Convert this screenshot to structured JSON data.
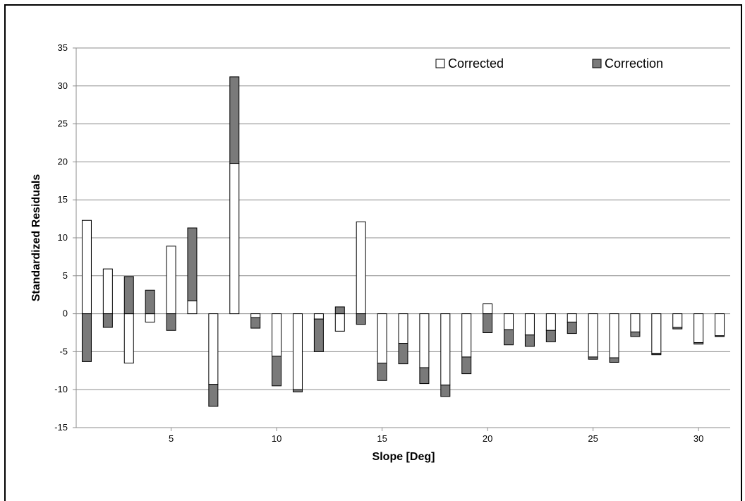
{
  "chart_data": {
    "type": "bar",
    "stacked": true,
    "title": "",
    "xlabel": "Slope [Deg]",
    "ylabel": "Standardized Residuals",
    "ylim": [
      -15,
      35
    ],
    "yticks": [
      -15,
      -10,
      -5,
      0,
      5,
      10,
      15,
      20,
      25,
      30,
      35
    ],
    "xlim": [
      0.5,
      31.5
    ],
    "xticks": [
      5,
      10,
      15,
      20,
      25,
      30
    ],
    "x": [
      1,
      2,
      3,
      4,
      5,
      6,
      7,
      8,
      9,
      10,
      11,
      12,
      13,
      14,
      15,
      16,
      17,
      18,
      19,
      20,
      21,
      22,
      23,
      24,
      25,
      26,
      27,
      28,
      29,
      30,
      31
    ],
    "grid": true,
    "legend_position": "top-right",
    "series": [
      {
        "name": "Corrected",
        "color": "#ffffff",
        "values": [
          12.3,
          5.9,
          -6.5,
          -1.1,
          8.9,
          1.7,
          -9.3,
          19.8,
          -0.5,
          -5.6,
          -10.0,
          -0.7,
          -2.3,
          12.1,
          -6.5,
          -3.9,
          -7.1,
          -9.4,
          -5.7,
          1.3,
          -2.1,
          -2.8,
          -2.2,
          -1.1,
          -5.7,
          -5.8,
          -2.4,
          -5.2,
          -1.8,
          -3.8,
          -2.9
        ]
      },
      {
        "name": "Correction",
        "color": "#7a7a7a",
        "values": [
          -6.3,
          -1.8,
          4.9,
          3.1,
          -2.2,
          9.6,
          -2.9,
          11.4,
          -1.4,
          -3.9,
          -0.3,
          -4.3,
          0.9,
          -1.4,
          -2.3,
          -2.7,
          -2.1,
          -1.5,
          -2.2,
          -2.5,
          -2.0,
          -1.5,
          -1.5,
          -1.5,
          -0.3,
          -0.6,
          -0.6,
          -0.2,
          -0.2,
          -0.2,
          -0.1
        ]
      }
    ]
  }
}
